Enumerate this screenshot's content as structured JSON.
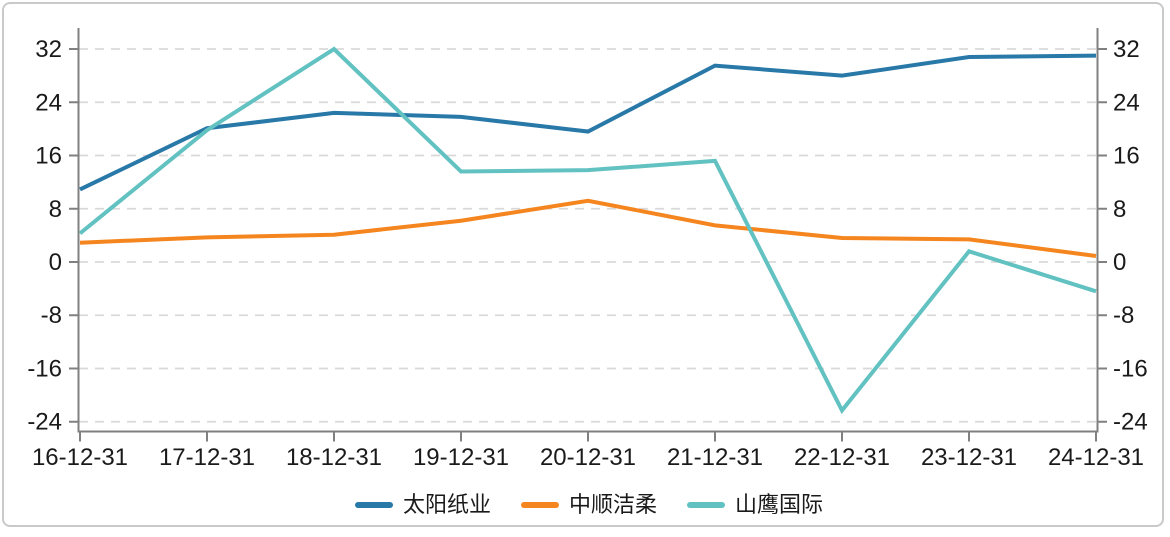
{
  "frame": {
    "background": "#ffffff",
    "border_color": "#c9c9c9"
  },
  "chart_data": {
    "type": "line",
    "title": "",
    "xlabel": "",
    "ylabel": "",
    "categories": [
      "16-12-31",
      "17-12-31",
      "18-12-31",
      "19-12-31",
      "20-12-31",
      "21-12-31",
      "22-12-31",
      "23-12-31",
      "24-12-31"
    ],
    "series": [
      {
        "name": "太阳纸业",
        "color": "#2878a8",
        "values": [
          10.9,
          20.1,
          22.4,
          21.8,
          19.6,
          29.5,
          28.0,
          30.8,
          31.0
        ]
      },
      {
        "name": "中顺洁柔",
        "color": "#f5861f",
        "values": [
          2.9,
          3.7,
          4.1,
          6.2,
          9.2,
          5.5,
          3.6,
          3.4,
          0.9
        ]
      },
      {
        "name": "山鹰国际",
        "color": "#62c1c1",
        "values": [
          4.3,
          19.8,
          32.0,
          13.6,
          13.8,
          15.2,
          -22.3,
          1.6,
          -4.4
        ]
      }
    ],
    "y_ticks": [
      32,
      24,
      16,
      8,
      0,
      -8,
      -16,
      -24
    ],
    "y_axis_sides": "left and right",
    "ylim": [
      -25.5,
      35
    ],
    "grid": "horizontal dashed",
    "grid_color": "#d9d9d9",
    "axis_color": "#808080",
    "text_color": "#1a1a1a",
    "legend_position": "bottom"
  }
}
